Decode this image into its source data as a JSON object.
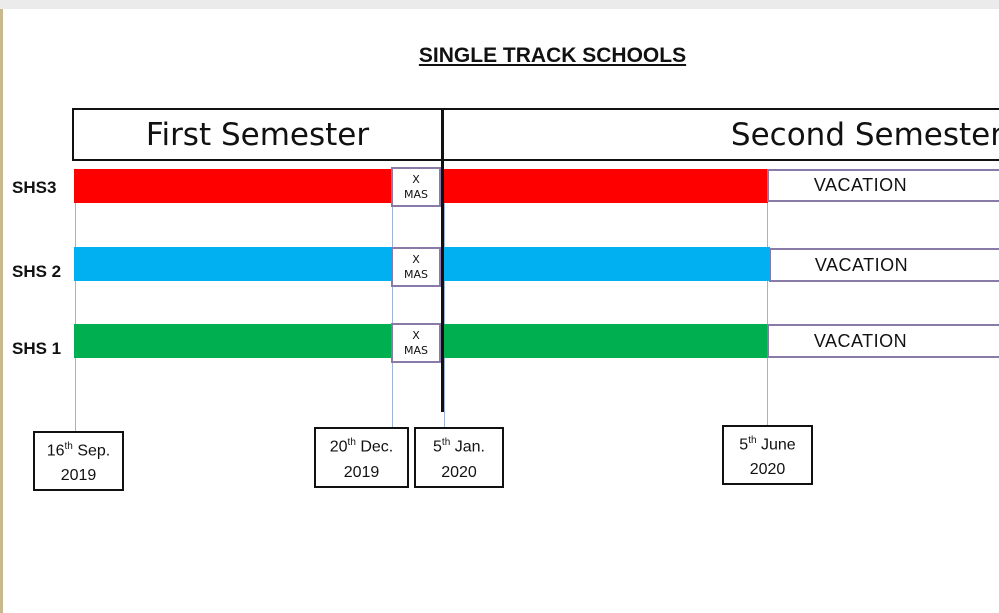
{
  "title": "SINGLE TRACK SCHOOLS",
  "semesters": {
    "first": "First Semester",
    "second": "Second Semester"
  },
  "rows": [
    {
      "label": "SHS3",
      "color": "#ff0000"
    },
    {
      "label": "SHS 2",
      "color": "#00b0f0"
    },
    {
      "label": "SHS 1",
      "color": "#00b050"
    }
  ],
  "break": {
    "line1": "X",
    "line2": "MAS"
  },
  "vacation_label": "VACATION",
  "dates": [
    {
      "day": "16",
      "suffix": "th",
      "month": "Sep.",
      "year": "2019"
    },
    {
      "day": "20",
      "suffix": "th",
      "month": "Dec.",
      "year": "2019"
    },
    {
      "day": "5",
      "suffix": "th",
      "month": "Jan.",
      "year": "2020"
    },
    {
      "day": "5",
      "suffix": "th",
      "month": "June",
      "year": "2020"
    }
  ]
}
